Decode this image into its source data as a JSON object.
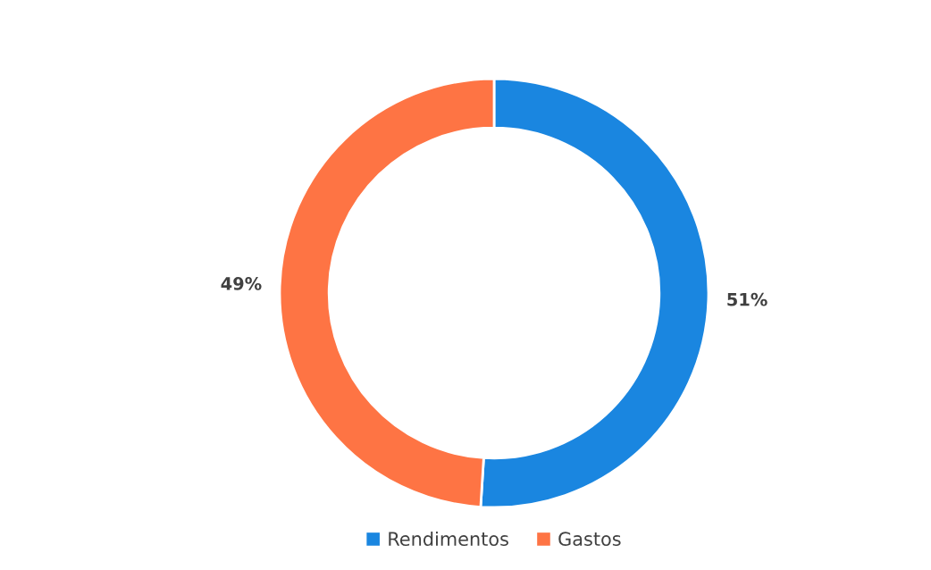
{
  "chart_data": {
    "type": "donut",
    "categories": [
      "Rendimentos",
      "Gastos"
    ],
    "values": [
      51,
      49
    ],
    "colors": [
      "#1a86e0",
      "#fe7444"
    ],
    "value_labels": [
      "51%",
      "49%"
    ],
    "legend": "bottom"
  }
}
